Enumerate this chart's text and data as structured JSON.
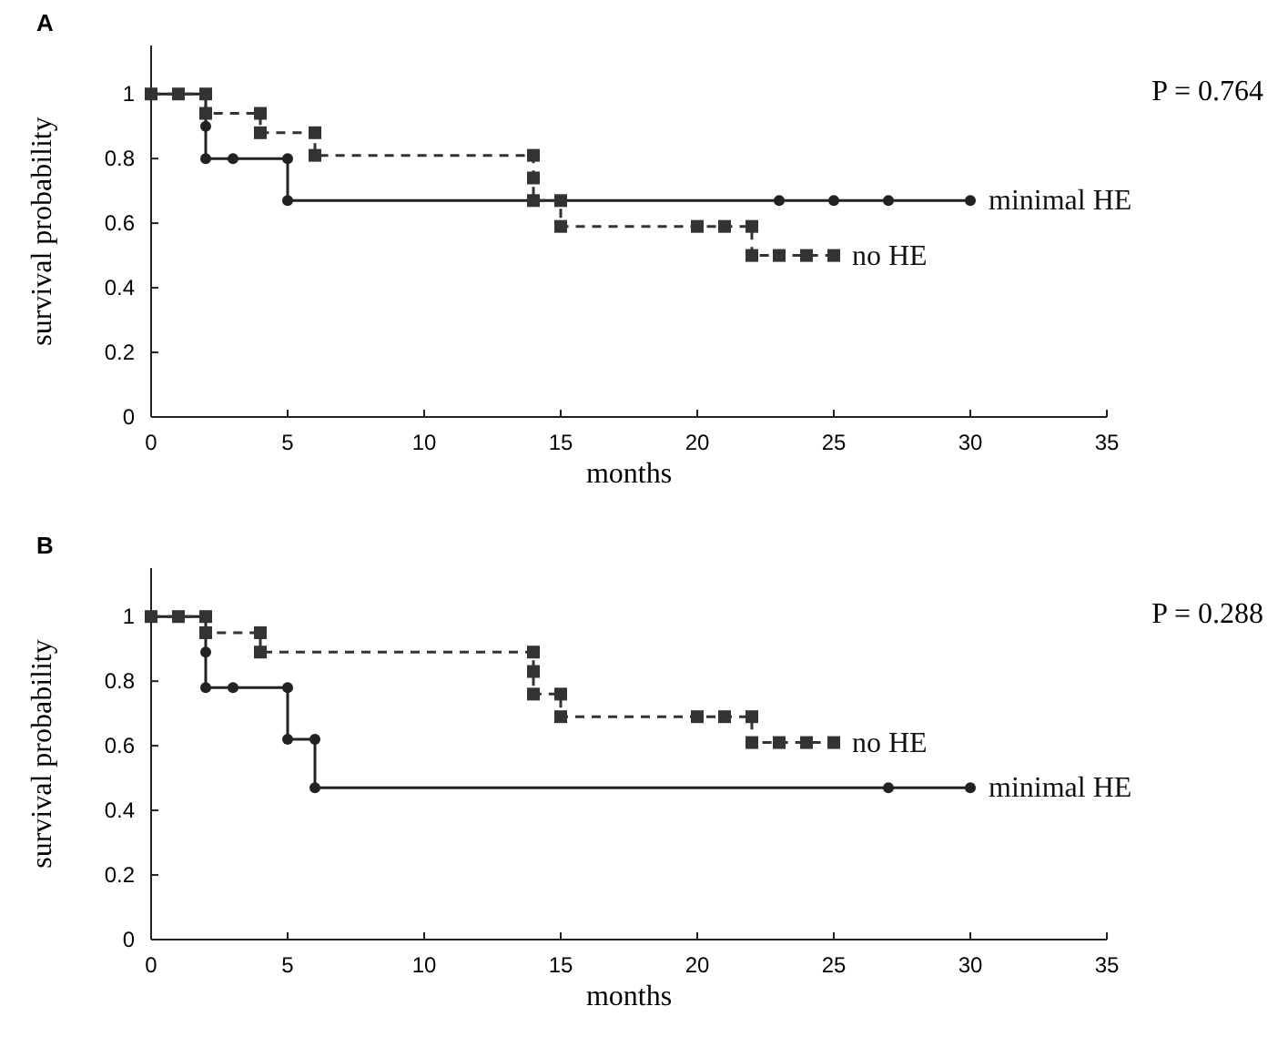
{
  "chart_data": [
    {
      "type": "step",
      "title": "A",
      "xlabel": "months",
      "ylabel": "survival probability",
      "annotations": [
        "P = 0.764"
      ],
      "xlim": [
        0,
        35
      ],
      "xticks": [
        0,
        5,
        10,
        15,
        20,
        25,
        30,
        35
      ],
      "ylim": [
        0,
        1.15
      ],
      "yticks": [
        0,
        0.2,
        0.4,
        0.6,
        0.8,
        1
      ],
      "legend": false,
      "series": [
        {
          "name": "minimal HE",
          "color": "#222222",
          "marker": "circle",
          "line_style": "solid",
          "x": [
            0,
            1,
            2,
            2,
            2,
            3,
            5,
            5,
            14,
            15,
            23,
            25,
            27,
            30
          ],
          "values": [
            1,
            1,
            1,
            0.9,
            0.8,
            0.8,
            0.8,
            0.67,
            0.67,
            0.67,
            0.67,
            0.67,
            0.67,
            0.67
          ]
        },
        {
          "name": "no HE",
          "color": "#333333",
          "marker": "square",
          "line_style": "dashed",
          "x": [
            0,
            1,
            2,
            2,
            4,
            4,
            6,
            6,
            14,
            14,
            14,
            15,
            15,
            20,
            21,
            22,
            22,
            23,
            24,
            25
          ],
          "values": [
            1,
            1,
            1,
            0.94,
            0.94,
            0.88,
            0.88,
            0.81,
            0.81,
            0.74,
            0.67,
            0.67,
            0.59,
            0.59,
            0.59,
            0.59,
            0.5,
            0.5,
            0.5,
            0.5
          ]
        }
      ]
    },
    {
      "type": "step",
      "title": "B",
      "xlabel": "months",
      "ylabel": "survival probability",
      "annotations": [
        "P = 0.288"
      ],
      "xlim": [
        0,
        35
      ],
      "xticks": [
        0,
        5,
        10,
        15,
        20,
        25,
        30,
        35
      ],
      "ylim": [
        0,
        1.15
      ],
      "yticks": [
        0,
        0.2,
        0.4,
        0.6,
        0.8,
        1
      ],
      "legend": false,
      "series": [
        {
          "name": "minimal HE",
          "color": "#222222",
          "marker": "circle",
          "line_style": "solid",
          "x": [
            0,
            1,
            2,
            2,
            2,
            3,
            5,
            5,
            6,
            6,
            27,
            30
          ],
          "values": [
            1,
            1,
            1,
            0.89,
            0.78,
            0.78,
            0.78,
            0.62,
            0.62,
            0.47,
            0.47,
            0.47
          ]
        },
        {
          "name": "no HE",
          "color": "#333333",
          "marker": "square",
          "line_style": "dashed",
          "x": [
            0,
            1,
            2,
            2,
            4,
            4,
            14,
            14,
            14,
            15,
            15,
            20,
            21,
            22,
            22,
            23,
            24,
            25
          ],
          "values": [
            1,
            1,
            1,
            0.95,
            0.95,
            0.89,
            0.89,
            0.83,
            0.76,
            0.76,
            0.69,
            0.69,
            0.69,
            0.69,
            0.61,
            0.61,
            0.61,
            0.61
          ]
        }
      ]
    }
  ]
}
